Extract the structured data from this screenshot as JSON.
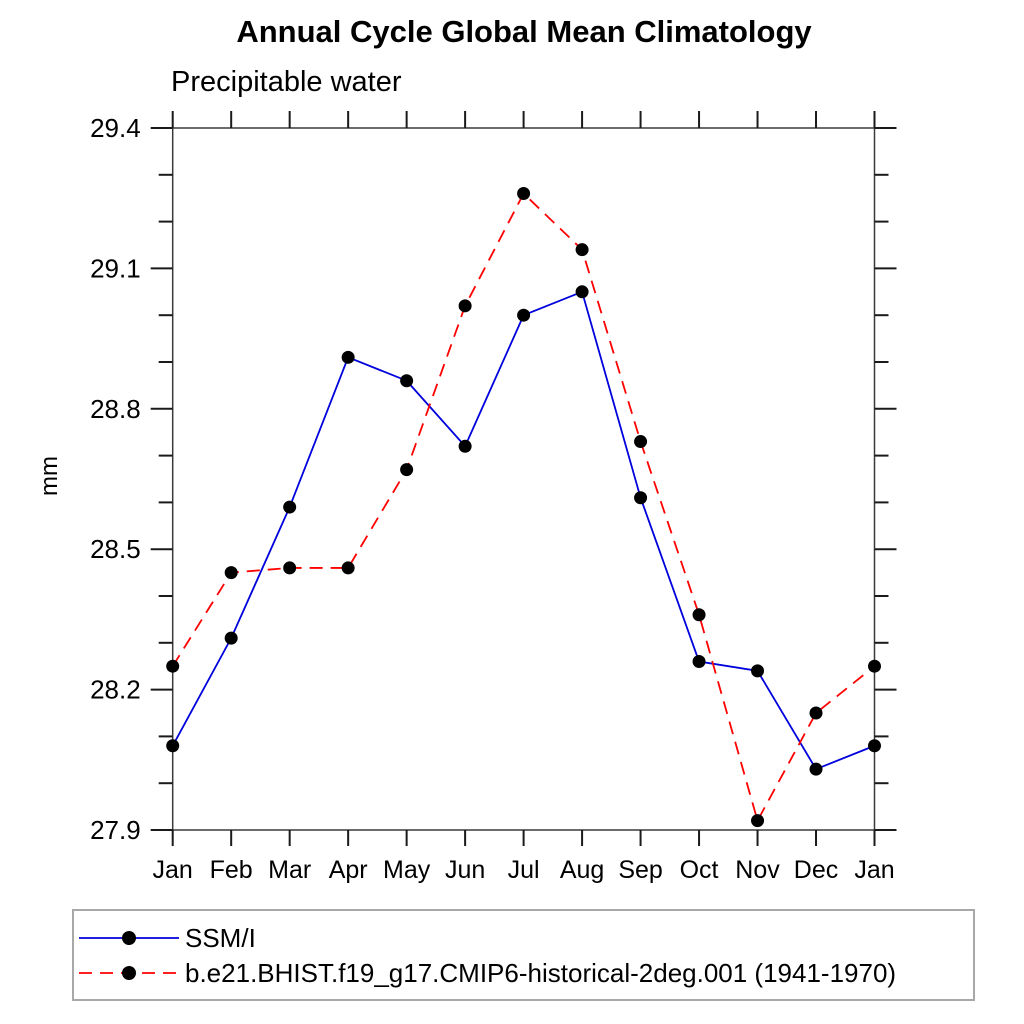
{
  "chart_data": {
    "type": "line",
    "title": "Annual Cycle Global Mean Climatology",
    "subtitle": "Precipitable water",
    "ylabel": "mm",
    "xlabel": "",
    "x_categories": [
      "Jan",
      "Feb",
      "Mar",
      "Apr",
      "May",
      "Jun",
      "Jul",
      "Aug",
      "Sep",
      "Oct",
      "Nov",
      "Dec",
      "Jan"
    ],
    "ylim": [
      27.9,
      29.4
    ],
    "ytick_major": [
      29.4,
      29.1,
      28.8,
      28.5,
      28.2,
      27.9
    ],
    "ytick_minor_step": 0.1,
    "grid": "off",
    "legend_position": "bottom",
    "marker_color": "#000000",
    "axis_color": "#3a3a3a",
    "tick_color": "#1a1a1a",
    "series": [
      {
        "name": "SSM/I",
        "color": "#0000dd",
        "style": "solid",
        "dash": "",
        "values": [
          28.08,
          28.31,
          28.59,
          28.91,
          28.86,
          28.72,
          29.0,
          29.05,
          28.61,
          28.26,
          28.24,
          28.03,
          28.08
        ]
      },
      {
        "name": "b.e21.BHIST.f19_g17.CMIP6-historical-2deg.001 (1941-1970)",
        "color": "#ff0000",
        "style": "dashed",
        "dash": "13 8",
        "values": [
          28.25,
          28.45,
          28.46,
          28.46,
          28.67,
          29.02,
          29.26,
          29.14,
          28.73,
          28.36,
          27.92,
          28.15,
          28.25
        ]
      }
    ]
  }
}
